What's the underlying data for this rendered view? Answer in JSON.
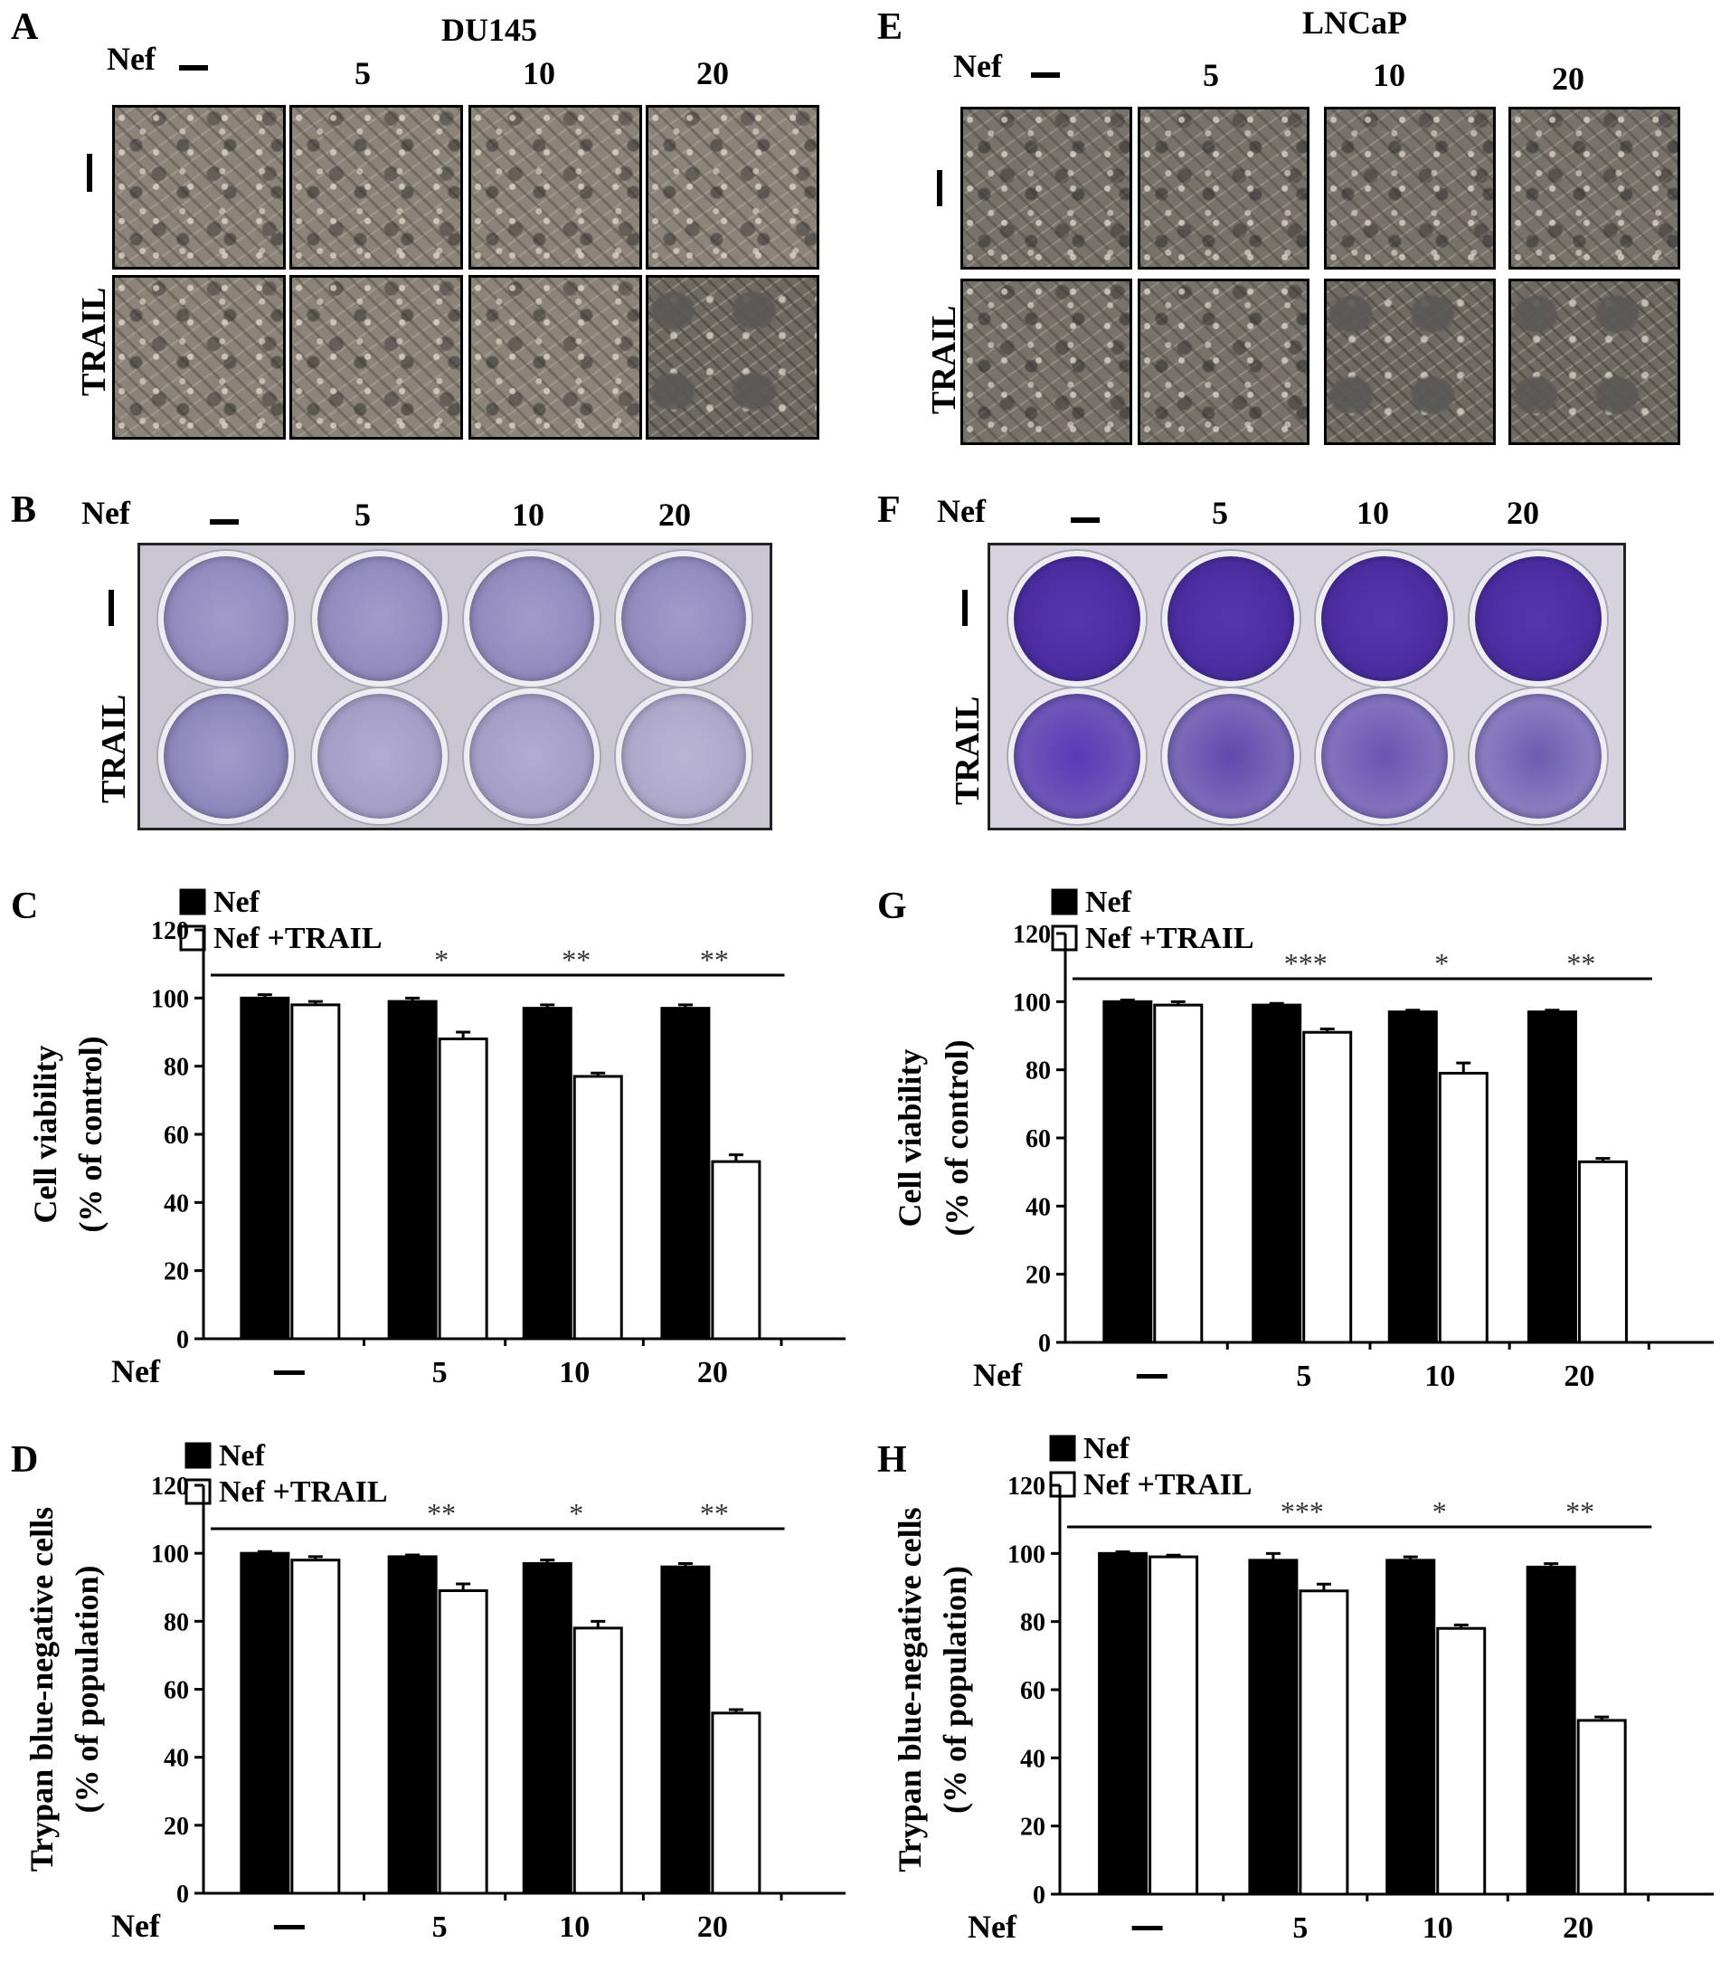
{
  "panels": {
    "A": {
      "letter": "A",
      "title": "DU145",
      "nef_label": "Nef",
      "doses": [
        "5",
        "10",
        "20"
      ],
      "row_labels": [
        "TRAIL"
      ]
    },
    "E": {
      "letter": "E",
      "title": "LNCaP",
      "nef_label": "Nef",
      "doses": [
        "5",
        "10",
        "20"
      ],
      "row_labels": [
        "TRAIL"
      ]
    },
    "B": {
      "letter": "B",
      "nef_label": "Nef",
      "doses": [
        "5",
        "10",
        "20"
      ],
      "row_labels": [
        "TRAIL"
      ]
    },
    "F": {
      "letter": "F",
      "nef_label": "Nef",
      "doses": [
        "5",
        "10",
        "20"
      ],
      "row_labels": [
        "TRAIL"
      ]
    }
  },
  "colors": {
    "nef": "#000000",
    "nef_trail": "#ffffff",
    "stain_du145": "#8f86bd",
    "stain_lncap": "#4a2e9c"
  },
  "chart_data": [
    {
      "panel": "C",
      "type": "bar",
      "ylabel_line1": "Cell viability",
      "ylabel_line2": "(% of control)",
      "xaxis_label": "Nef",
      "categories": [
        "—",
        "5",
        "10",
        "20"
      ],
      "ylim": [
        0,
        120
      ],
      "yticks": [
        0,
        20,
        40,
        60,
        80,
        100,
        120
      ],
      "series": [
        {
          "name": "Nef",
          "values": [
            100,
            99,
            97,
            97
          ],
          "errors": [
            1,
            1,
            1,
            1
          ]
        },
        {
          "name": "Nef +TRAIL",
          "values": [
            98,
            88,
            77,
            52
          ],
          "errors": [
            1,
            2,
            1,
            2
          ]
        }
      ],
      "significance": [
        "",
        "*",
        "**",
        "**"
      ]
    },
    {
      "panel": "G",
      "type": "bar",
      "ylabel_line1": "Cell viability",
      "ylabel_line2": "(% of  control)",
      "xaxis_label": "Nef",
      "categories": [
        "—",
        "5",
        "10",
        "20"
      ],
      "ylim": [
        0,
        120
      ],
      "yticks": [
        0,
        20,
        40,
        60,
        80,
        100,
        120
      ],
      "series": [
        {
          "name": "Nef",
          "values": [
            100,
            99,
            97,
            97
          ],
          "errors": [
            0.5,
            0.5,
            0.5,
            0.5
          ]
        },
        {
          "name": "Nef +TRAIL",
          "values": [
            99,
            91,
            79,
            53
          ],
          "errors": [
            1,
            1,
            3,
            1
          ]
        }
      ],
      "significance": [
        "",
        "***",
        "*",
        "**"
      ]
    },
    {
      "panel": "D",
      "type": "bar",
      "ylabel_line1": "Trypan blue-negative cells",
      "ylabel_line2": "(% of population)",
      "xaxis_label": "Nef",
      "categories": [
        "—",
        "5",
        "10",
        "20"
      ],
      "ylim": [
        0,
        120
      ],
      "yticks": [
        0,
        20,
        40,
        60,
        80,
        100,
        120
      ],
      "series": [
        {
          "name": "Nef",
          "values": [
            100,
            99,
            97,
            96
          ],
          "errors": [
            0.5,
            0.5,
            1,
            1
          ]
        },
        {
          "name": "Nef +TRAIL",
          "values": [
            98,
            89,
            78,
            53
          ],
          "errors": [
            1,
            2,
            2,
            1
          ]
        }
      ],
      "significance": [
        "",
        "**",
        "*",
        "**"
      ]
    },
    {
      "panel": "H",
      "type": "bar",
      "ylabel_line1": "Trypan blue-negative cells",
      "ylabel_line2": "(% of population)",
      "xaxis_label": "Nef",
      "categories": [
        "—",
        "5",
        "10",
        "20"
      ],
      "ylim": [
        0,
        120
      ],
      "yticks": [
        0,
        20,
        40,
        60,
        80,
        100,
        120
      ],
      "series": [
        {
          "name": "Nef",
          "values": [
            100,
            98,
            98,
            96
          ],
          "errors": [
            0.5,
            2,
            1,
            1
          ]
        },
        {
          "name": "Nef +TRAIL",
          "values": [
            99,
            89,
            78,
            51
          ],
          "errors": [
            0.5,
            2,
            1,
            1
          ]
        }
      ],
      "significance": [
        "",
        "***",
        "*",
        "**"
      ]
    }
  ]
}
